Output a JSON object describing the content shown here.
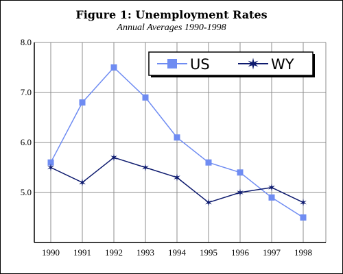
{
  "chart_data": {
    "type": "line",
    "title": "Figure 1:  Unemployment Rates",
    "subtitle": "Annual Averages 1990-1998",
    "xlabel": "",
    "ylabel": "",
    "categories": [
      "1990",
      "1991",
      "1992",
      "1993",
      "1994",
      "1995",
      "1996",
      "1997",
      "1998"
    ],
    "y_ticks": [
      "5.0",
      "6.0",
      "7.0",
      "8.0"
    ],
    "ylim": [
      4.0,
      8.0
    ],
    "grid": true,
    "legend_position": "top-right",
    "series": [
      {
        "name": "US",
        "values": [
          5.6,
          6.8,
          7.5,
          6.9,
          6.1,
          5.6,
          5.4,
          4.9,
          4.5
        ],
        "color": "#6f8cf2",
        "marker": "square"
      },
      {
        "name": "WY",
        "values": [
          5.5,
          5.2,
          5.7,
          5.5,
          5.3,
          4.8,
          5.0,
          5.1,
          4.8
        ],
        "color": "#0d1a6e",
        "marker": "star"
      }
    ]
  }
}
